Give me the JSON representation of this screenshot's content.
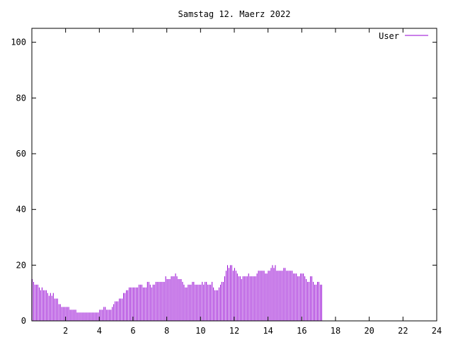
{
  "chart_data": {
    "type": "bar",
    "title": "Samstag 12. Maerz 2022",
    "xlabel": "",
    "ylabel": "",
    "xlim": [
      0,
      24
    ],
    "ylim": [
      0,
      105
    ],
    "x_ticks": [
      2,
      4,
      6,
      8,
      10,
      12,
      14,
      16,
      18,
      20,
      22,
      24
    ],
    "y_ticks": [
      0,
      20,
      40,
      60,
      80,
      100
    ],
    "legend_position": "top-right",
    "grid": false,
    "series": [
      {
        "name": "User",
        "color": "#9400d3",
        "x_start": 0,
        "x_step": 0.0833,
        "values": [
          15,
          14,
          13,
          13,
          13,
          12,
          11,
          12,
          11,
          11,
          11,
          10,
          9,
          10,
          9,
          10,
          8,
          8,
          8,
          6,
          6,
          5,
          5,
          5,
          5,
          5,
          5,
          4,
          4,
          4,
          4,
          4,
          3,
          3,
          3,
          3,
          3,
          3,
          3,
          3,
          3,
          3,
          3,
          3,
          3,
          3,
          3,
          3,
          4,
          4,
          4,
          5,
          5,
          4,
          4,
          4,
          4,
          5,
          6,
          7,
          7,
          7,
          8,
          8,
          8,
          10,
          10,
          11,
          11,
          12,
          12,
          12,
          12,
          12,
          12,
          12,
          13,
          13,
          13,
          12,
          12,
          12,
          14,
          14,
          13,
          12,
          13,
          13,
          14,
          14,
          14,
          14,
          14,
          14,
          14,
          16,
          15,
          15,
          15,
          16,
          16,
          16,
          17,
          16,
          15,
          15,
          15,
          14,
          13,
          12,
          12,
          13,
          13,
          13,
          14,
          14,
          13,
          13,
          13,
          13,
          13,
          14,
          13,
          14,
          14,
          13,
          13,
          13,
          14,
          12,
          11,
          11,
          11,
          12,
          13,
          14,
          14,
          16,
          18,
          20,
          19,
          20,
          20,
          18,
          19,
          18,
          17,
          16,
          16,
          15,
          16,
          16,
          16,
          16,
          17,
          16,
          16,
          16,
          16,
          16,
          17,
          18,
          18,
          18,
          18,
          18,
          17,
          17,
          18,
          18,
          19,
          20,
          19,
          20,
          18,
          18,
          18,
          18,
          18,
          19,
          19,
          18,
          18,
          18,
          18,
          18,
          17,
          17,
          17,
          16,
          16,
          17,
          17,
          17,
          16,
          15,
          14,
          14,
          16,
          16,
          14,
          13,
          13,
          14,
          14,
          13,
          13
        ]
      }
    ]
  }
}
